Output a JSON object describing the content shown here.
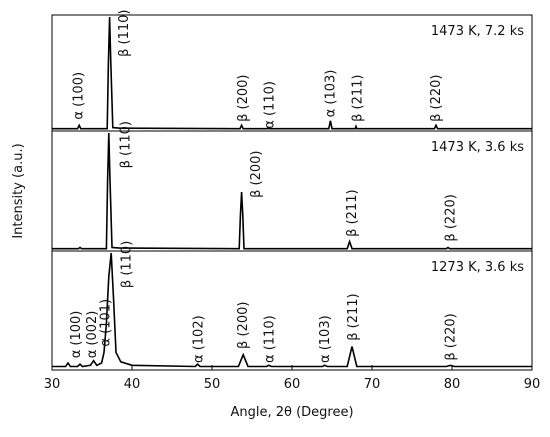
{
  "chart_data": [
    {
      "type": "line",
      "label": "1473 K, 7.2 ks",
      "color": "#000000",
      "xlim": [
        30,
        90
      ],
      "ylim": [
        0,
        100
      ],
      "x": [
        30,
        33.2,
        33.4,
        33.6,
        36.9,
        37.05,
        37.2,
        37.35,
        37.6,
        38.5,
        53.5,
        53.7,
        53.9,
        56.9,
        57.0,
        57.1,
        64.6,
        64.8,
        65.0,
        67.9,
        68.0,
        68.1,
        77.8,
        78.0,
        78.2,
        90
      ],
      "values": [
        2,
        2,
        5,
        2,
        2,
        60,
        100,
        60,
        3,
        2.5,
        2,
        5,
        2,
        2,
        3,
        2,
        2,
        9,
        2,
        2,
        4,
        2,
        2,
        5,
        2,
        2
      ],
      "annotations": [
        {
          "text": "α (100)",
          "x": 33.3,
          "y": 10
        },
        {
          "text": "β (110)",
          "x": 39.0,
          "y": 65
        },
        {
          "text": "β (200)",
          "x": 53.9,
          "y": 8
        },
        {
          "text": "α (110)",
          "x": 57.2,
          "y": 2
        },
        {
          "text": "α (103)",
          "x": 64.8,
          "y": 12
        },
        {
          "text": "β (211)",
          "x": 68.2,
          "y": 8
        },
        {
          "text": "β (220)",
          "x": 78.0,
          "y": 8
        }
      ]
    },
    {
      "type": "line",
      "label": "1473 K, 3.6 ks",
      "color": "#000000",
      "xlim": [
        30,
        90
      ],
      "ylim": [
        0,
        100
      ],
      "ylabel": "Intensity (a.u.)",
      "x": [
        30,
        33.3,
        33.5,
        33.7,
        36.8,
        36.95,
        37.1,
        37.25,
        37.5,
        38.5,
        53.4,
        53.55,
        53.7,
        53.85,
        54.0,
        66.9,
        67.2,
        67.5,
        79.3,
        79.5,
        79.7,
        90
      ],
      "values": [
        2,
        2,
        3,
        2,
        2,
        60,
        100,
        60,
        3,
        2.5,
        2,
        30,
        50,
        30,
        2,
        2,
        8,
        2,
        2,
        3,
        2,
        2
      ],
      "annotations": [
        {
          "text": "β (110)",
          "x": 39.2,
          "y": 70
        },
        {
          "text": "β (200)",
          "x": 55.5,
          "y": 45
        },
        {
          "text": "β (211)",
          "x": 67.5,
          "y": 12
        },
        {
          "text": "β (220)",
          "x": 79.8,
          "y": 8
        }
      ]
    },
    {
      "type": "line",
      "label": "1273 K, 3.6 ks",
      "color": "#000000",
      "xlim": [
        30,
        90
      ],
      "ylim": [
        0,
        100
      ],
      "xlabel": "Angle, 2θ (Degree)",
      "xticks": [
        30,
        40,
        50,
        60,
        70,
        80,
        90
      ],
      "x": [
        30,
        31.7,
        32.0,
        32.3,
        33.2,
        33.5,
        33.8,
        34.8,
        35.2,
        35.6,
        36.2,
        36.5,
        36.8,
        37.1,
        37.4,
        37.7,
        38.0,
        38.6,
        40,
        47.9,
        48.2,
        48.5,
        53.3,
        53.9,
        54.5,
        56.8,
        57.1,
        57.4,
        63.8,
        64.1,
        64.4,
        66.9,
        67.5,
        68.1,
        79.3,
        79.8,
        80.3,
        90
      ],
      "values": [
        3,
        3,
        6,
        3,
        3,
        5,
        3,
        4,
        8,
        4,
        6,
        15,
        40,
        80,
        100,
        60,
        15,
        7,
        4,
        3,
        5,
        3,
        3,
        13,
        3,
        3,
        4,
        3,
        3,
        4,
        3,
        3,
        20,
        3,
        3,
        4,
        3,
        3
      ],
      "annotations": [
        {
          "text": "α (100)",
          "x": 33.0,
          "y": 10
        },
        {
          "text": "α (002)",
          "x": 35.0,
          "y": 10
        },
        {
          "text": "α (101)",
          "x": 36.7,
          "y": 20
        },
        {
          "text": "β (110)",
          "x": 39.3,
          "y": 70
        },
        {
          "text": "α (102)",
          "x": 48.3,
          "y": 6
        },
        {
          "text": "β (200)",
          "x": 53.9,
          "y": 18
        },
        {
          "text": "α (110)",
          "x": 57.2,
          "y": 6
        },
        {
          "text": "α (103)",
          "x": 64.1,
          "y": 6
        },
        {
          "text": "β (211)",
          "x": 67.6,
          "y": 25
        },
        {
          "text": "β (220)",
          "x": 79.8,
          "y": 8
        }
      ]
    }
  ]
}
